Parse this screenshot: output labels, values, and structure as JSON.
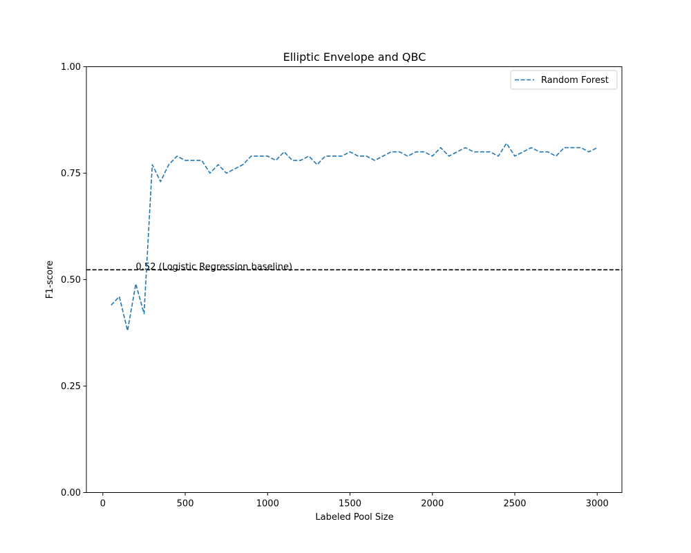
{
  "chart_data": {
    "type": "line",
    "title": "Elliptic Envelope and QBC",
    "xlabel": "Labeled Pool Size",
    "ylabel": "F1-score",
    "xlim": [
      -100,
      3150
    ],
    "ylim": [
      0.0,
      1.0
    ],
    "xticks": [
      0,
      500,
      1000,
      1500,
      2000,
      2500,
      3000
    ],
    "xtick_labels": [
      "0",
      "500",
      "1000",
      "1500",
      "2000",
      "2500",
      "3000"
    ],
    "yticks": [
      0.0,
      0.25,
      0.5,
      0.75,
      1.0
    ],
    "ytick_labels": [
      "0.00",
      "0.25",
      "0.50",
      "0.75",
      "1.00"
    ],
    "grid": false,
    "legend_position": "top-right",
    "series": [
      {
        "name": "Random Forest",
        "color": "#1f77b4",
        "linestyle": "dashed",
        "x": [
          50,
          100,
          150,
          200,
          250,
          300,
          350,
          400,
          450,
          500,
          550,
          600,
          650,
          700,
          750,
          800,
          850,
          900,
          950,
          1000,
          1050,
          1100,
          1150,
          1200,
          1250,
          1300,
          1350,
          1400,
          1450,
          1500,
          1550,
          1600,
          1650,
          1700,
          1750,
          1800,
          1850,
          1900,
          1950,
          2000,
          2050,
          2100,
          2150,
          2200,
          2250,
          2300,
          2350,
          2400,
          2450,
          2500,
          2550,
          2600,
          2650,
          2700,
          2750,
          2800,
          2850,
          2900,
          2950,
          3000
        ],
        "y": [
          0.44,
          0.46,
          0.38,
          0.49,
          0.42,
          0.77,
          0.73,
          0.77,
          0.79,
          0.78,
          0.78,
          0.78,
          0.75,
          0.77,
          0.75,
          0.76,
          0.77,
          0.79,
          0.79,
          0.79,
          0.78,
          0.8,
          0.78,
          0.78,
          0.79,
          0.77,
          0.79,
          0.79,
          0.79,
          0.8,
          0.79,
          0.79,
          0.78,
          0.79,
          0.8,
          0.8,
          0.79,
          0.8,
          0.8,
          0.79,
          0.81,
          0.79,
          0.8,
          0.81,
          0.8,
          0.8,
          0.8,
          0.79,
          0.82,
          0.79,
          0.8,
          0.81,
          0.8,
          0.8,
          0.79,
          0.81,
          0.81,
          0.81,
          0.8,
          0.81
        ]
      }
    ],
    "baseline": {
      "value": 0.523,
      "color": "#000000",
      "linestyle": "dashed",
      "label": "0.52 (Logistic Regression baseline)",
      "label_x": 200
    }
  }
}
